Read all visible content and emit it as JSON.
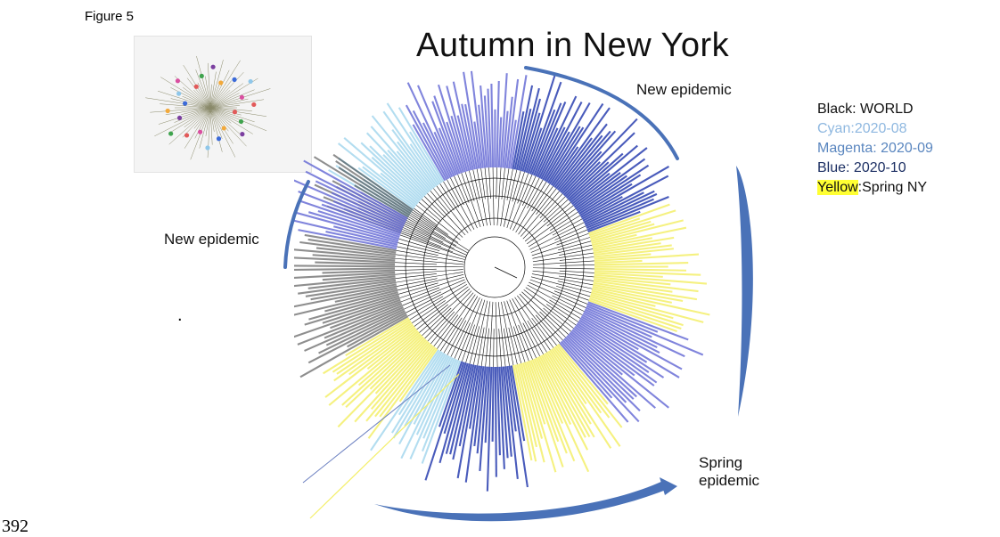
{
  "figure_label": "Figure 5",
  "page_number": "392",
  "title": "Autumn in New York",
  "callouts": {
    "new_epidemic_top": "New epidemic",
    "new_epidemic_left": "New epidemic",
    "spring_line1": "Spring",
    "spring_line2": "epidemic",
    "stray_mark": "."
  },
  "legend": {
    "items": [
      {
        "key": "Black",
        "sep": ": ",
        "value": "WORLD",
        "color": "#111111"
      },
      {
        "key": "Cyan",
        "sep": ":",
        "value": "2020-08",
        "color": "#8fb8e0"
      },
      {
        "key": "Magenta",
        "sep": ": ",
        "value": "2020-09",
        "color": "#5a86bf"
      },
      {
        "key": "Blue",
        "sep": ": ",
        "value": "2020-10",
        "color": "#1c2f63"
      },
      {
        "key": "Yellow",
        "sep": ":",
        "value": "Spring NY",
        "color": "#111111",
        "highlight": "#ffff33"
      }
    ]
  },
  "colors": {
    "arc": "#4a72b8",
    "tree_black": "#111111",
    "cyan": "#a6d8ee",
    "magenta_blue": "#6a6fd6",
    "blue": "#2a3fb0",
    "yellow": "#f4ef6a"
  }
}
